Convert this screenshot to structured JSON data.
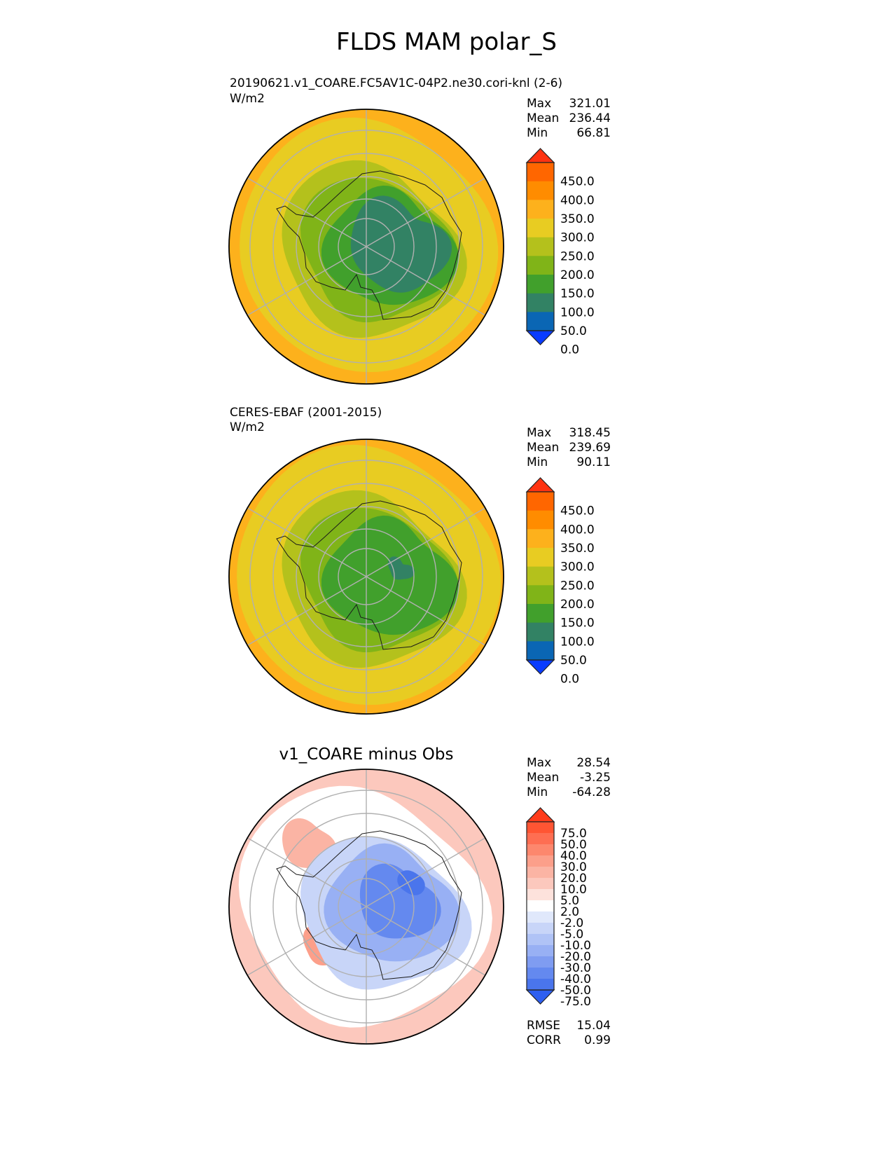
{
  "figure": {
    "title": "FLDS MAM polar_S"
  },
  "panels": [
    {
      "id": "model",
      "title": "20190621.v1_COARE.FC5AV1C-04P2.ne30.cori-knl (2-6)",
      "units": "W/m2",
      "stats": [
        {
          "label": "Max",
          "value": "321.01"
        },
        {
          "label": "Mean",
          "value": "236.44"
        },
        {
          "label": "Min",
          "value": "66.81"
        }
      ]
    },
    {
      "id": "obs",
      "title": "CERES-EBAF (2001-2015)",
      "units": "W/m2",
      "stats": [
        {
          "label": "Max",
          "value": "318.45"
        },
        {
          "label": "Mean",
          "value": "239.69"
        },
        {
          "label": "Min",
          "value": "90.11"
        }
      ]
    },
    {
      "id": "diff",
      "title": "v1_COARE minus Obs",
      "units": "",
      "stats": [
        {
          "label": "Max",
          "value": "28.54"
        },
        {
          "label": "Mean",
          "value": "-3.25"
        },
        {
          "label": "Min",
          "value": "-64.28"
        }
      ],
      "metrics": [
        {
          "label": "RMSE",
          "value": "15.04"
        },
        {
          "label": "CORR",
          "value": "0.99"
        }
      ]
    }
  ],
  "chart_data": [
    {
      "type": "heatmap",
      "panel": "model",
      "projection": "south polar stereographic",
      "title": "20190621.v1_COARE.FC5AV1C-04P2.ne30.cori-knl (2-6)",
      "units": "W/m2",
      "max": 321.01,
      "mean": 236.44,
      "min": 66.81,
      "colorbar": {
        "ticks": [
          "450.0",
          "400.0",
          "350.0",
          "300.0",
          "250.0",
          "200.0",
          "150.0",
          "100.0",
          "50.0",
          "0.0"
        ],
        "colors": [
          "#ff3311",
          "#ff6600",
          "#ff8c00",
          "#fdb11c",
          "#e8cc22",
          "#b4c11c",
          "#80b418",
          "#41a02c",
          "#328264",
          "#0a66b4",
          "#0a3cff"
        ],
        "extend": "both"
      }
    },
    {
      "type": "heatmap",
      "panel": "obs",
      "projection": "south polar stereographic",
      "title": "CERES-EBAF (2001-2015)",
      "units": "W/m2",
      "max": 318.45,
      "mean": 239.69,
      "min": 90.11,
      "colorbar": {
        "ticks": [
          "450.0",
          "400.0",
          "350.0",
          "300.0",
          "250.0",
          "200.0",
          "150.0",
          "100.0",
          "50.0",
          "0.0"
        ],
        "colors": [
          "#ff3311",
          "#ff6600",
          "#ff8c00",
          "#fdb11c",
          "#e8cc22",
          "#b4c11c",
          "#80b418",
          "#41a02c",
          "#328264",
          "#0a66b4",
          "#0a3cff"
        ],
        "extend": "both"
      }
    },
    {
      "type": "heatmap",
      "panel": "diff",
      "projection": "south polar stereographic",
      "title": "v1_COARE minus Obs",
      "max": 28.54,
      "mean": -3.25,
      "min": -64.28,
      "rmse": 15.04,
      "corr": 0.99,
      "colorbar": {
        "ticks": [
          "75.0",
          "50.0",
          "40.0",
          "30.0",
          "20.0",
          "10.0",
          "5.0",
          "2.0",
          "-2.0",
          "-5.0",
          "-10.0",
          "-20.0",
          "-30.0",
          "-40.0",
          "-50.0",
          "-75.0"
        ],
        "colors": [
          "#ff3b1a",
          "#ff5533",
          "#fe6e52",
          "#fd876d",
          "#fc9f8a",
          "#fbb4a4",
          "#fcc8bd",
          "#fde2dc",
          "#ffffff",
          "#e0e8fb",
          "#c8d5f8",
          "#b0c3f6",
          "#98b0f4",
          "#7f9cf1",
          "#6489ef",
          "#4a75ec",
          "#2e5ff0"
        ],
        "extend": "both"
      }
    }
  ]
}
